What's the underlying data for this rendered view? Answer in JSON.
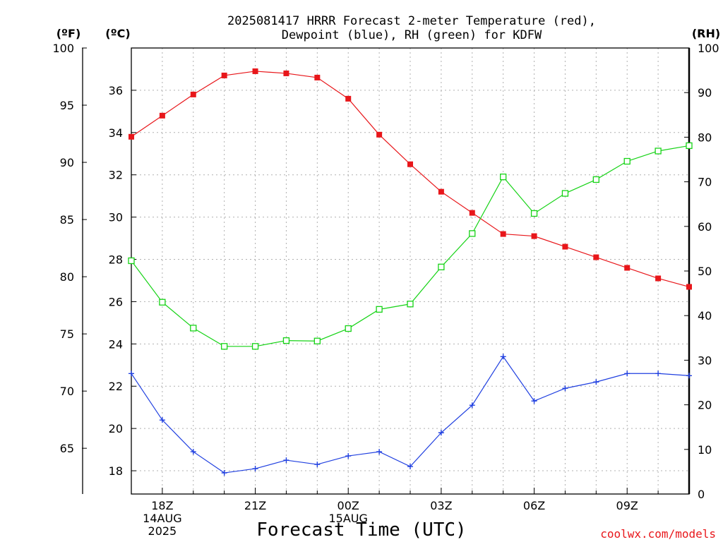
{
  "chart_data": {
    "type": "line",
    "title_lines": [
      "2025081417 HRRR Forecast 2-meter Temperature (red),",
      "Dewpoint (blue), RH (green) for KDFW"
    ],
    "xlabel": "Forecast Time (UTC)",
    "credit": "coolwx.com/models",
    "units": {
      "fahrenheit": "(ºF)",
      "celsius": "(ºC)",
      "rh": "(RH)"
    },
    "x_hours": [
      17,
      18,
      19,
      20,
      21,
      22,
      23,
      24,
      25,
      26,
      27,
      28,
      29,
      30,
      31,
      32,
      33,
      34,
      35
    ],
    "x_range": [
      17,
      35
    ],
    "x_ticks": [
      {
        "hour": 18,
        "lines": [
          "18Z",
          "14AUG",
          "2025"
        ]
      },
      {
        "hour": 21,
        "lines": [
          "21Z"
        ]
      },
      {
        "hour": 24,
        "lines": [
          "00Z",
          "15AUG"
        ]
      },
      {
        "hour": 27,
        "lines": [
          "03Z"
        ]
      },
      {
        "hour": 30,
        "lines": [
          "06Z"
        ]
      },
      {
        "hour": 33,
        "lines": [
          "09Z"
        ]
      }
    ],
    "celsius_axis": {
      "range": [
        16.9,
        38.0
      ],
      "ticks": [
        18,
        20,
        22,
        24,
        26,
        28,
        30,
        32,
        34,
        36
      ]
    },
    "fahrenheit_axis": {
      "range": [
        61.0,
        100.0
      ],
      "ticks": [
        65,
        70,
        75,
        80,
        85,
        90,
        95,
        100
      ]
    },
    "rh_axis": {
      "range": [
        0,
        100
      ],
      "ticks": [
        0,
        10,
        20,
        30,
        40,
        50,
        60,
        70,
        80,
        90,
        100
      ]
    },
    "grid": true,
    "colors": {
      "temperature": "#e8161a",
      "dewpoint": "#1f3fe0",
      "rh": "#16d316",
      "credit": "#e8161a"
    },
    "series": [
      {
        "key": "temperature",
        "axis": "celsius",
        "marker": "filled-square",
        "values": [
          33.8,
          34.8,
          35.8,
          36.7,
          36.9,
          36.8,
          36.6,
          35.6,
          33.9,
          32.5,
          31.2,
          30.2,
          29.2,
          29.1,
          28.6,
          28.1,
          27.6,
          27.1,
          26.7
        ]
      },
      {
        "key": "dewpoint",
        "axis": "celsius",
        "marker": "plus",
        "values": [
          22.6,
          20.4,
          18.9,
          17.9,
          18.1,
          18.5,
          18.3,
          18.7,
          18.9,
          18.2,
          19.8,
          21.1,
          23.4,
          21.3,
          21.9,
          22.2,
          22.6,
          22.6,
          22.5
        ]
      },
      {
        "key": "rh",
        "axis": "rh",
        "marker": "open-square",
        "values": [
          52.3,
          43.0,
          37.2,
          33.1,
          33.1,
          34.4,
          34.3,
          37.1,
          41.4,
          42.6,
          50.9,
          58.4,
          71.1,
          62.9,
          67.4,
          70.5,
          74.6,
          76.9,
          78.1
        ]
      }
    ]
  }
}
